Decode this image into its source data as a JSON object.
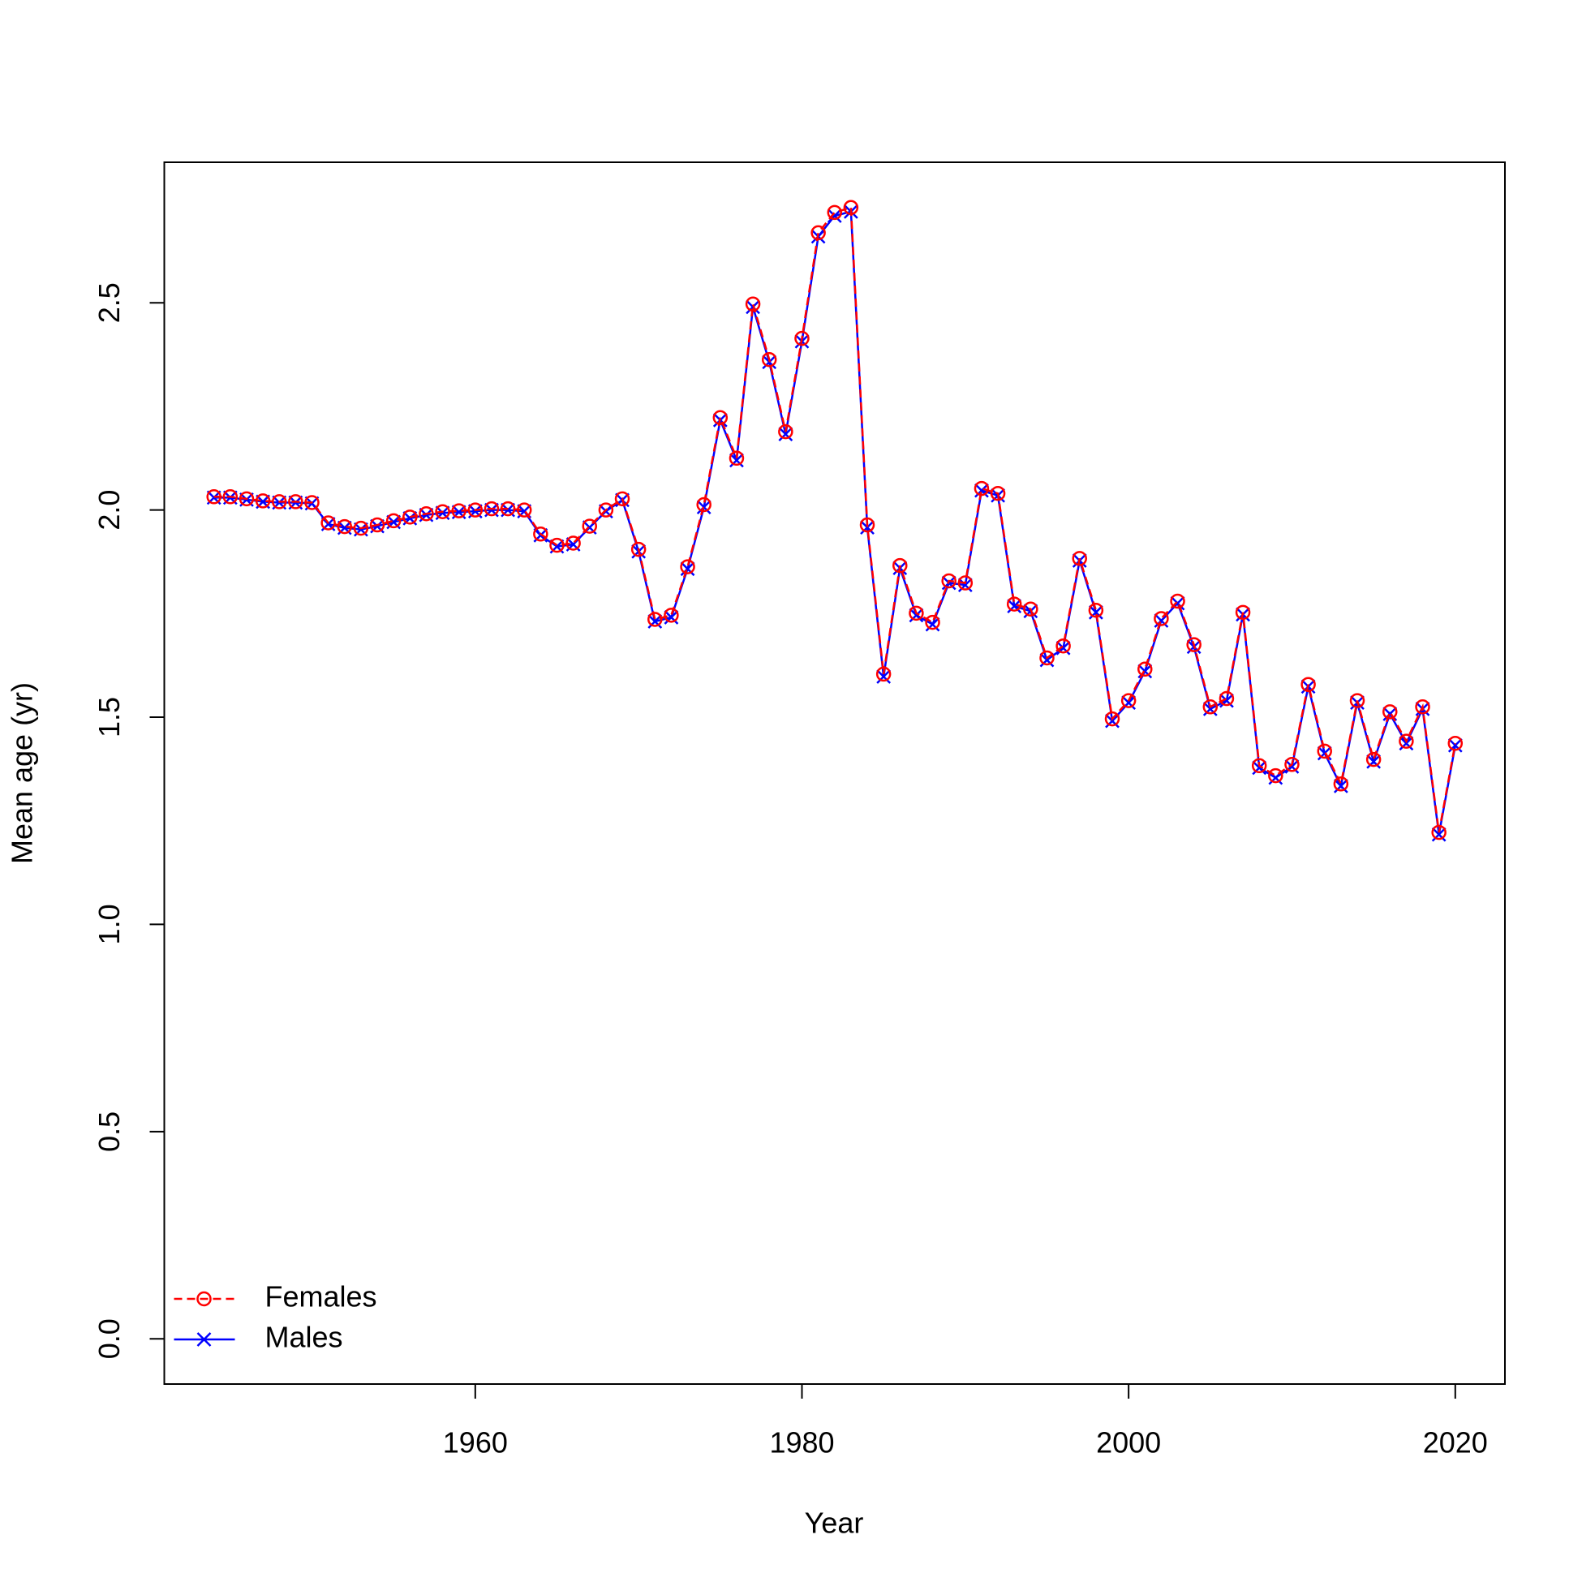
{
  "chart_data": {
    "type": "line",
    "xlabel": "Year",
    "ylabel": "Mean age (yr)",
    "x": [
      1944,
      1945,
      1946,
      1947,
      1948,
      1949,
      1950,
      1951,
      1952,
      1953,
      1954,
      1955,
      1956,
      1957,
      1958,
      1959,
      1960,
      1961,
      1962,
      1963,
      1964,
      1965,
      1966,
      1967,
      1968,
      1969,
      1970,
      1971,
      1972,
      1973,
      1974,
      1975,
      1976,
      1977,
      1978,
      1979,
      1980,
      1981,
      1982,
      1983,
      1984,
      1985,
      1986,
      1987,
      1988,
      1989,
      1990,
      1991,
      1992,
      1993,
      1994,
      1995,
      1996,
      1997,
      1998,
      1999,
      2000,
      2001,
      2002,
      2003,
      2004,
      2005,
      2006,
      2007,
      2008,
      2009,
      2010,
      2011,
      2012,
      2013,
      2014,
      2015,
      2016,
      2017,
      2018,
      2019,
      2020
    ],
    "series": [
      {
        "name": "Females",
        "color": "#ff0000",
        "dashed": true,
        "marker": "circle",
        "values": [
          2.032,
          2.032,
          2.027,
          2.022,
          2.02,
          2.02,
          2.018,
          1.969,
          1.96,
          1.956,
          1.964,
          1.974,
          1.983,
          1.991,
          1.996,
          1.998,
          2.0,
          2.003,
          2.003,
          2.0,
          1.942,
          1.915,
          1.92,
          1.961,
          2.0,
          2.027,
          1.905,
          1.736,
          1.746,
          1.863,
          2.013,
          2.223,
          2.125,
          2.497,
          2.363,
          2.189,
          2.414,
          2.669,
          2.718,
          2.73,
          1.964,
          1.604,
          1.866,
          1.751,
          1.729,
          1.829,
          1.824,
          2.052,
          2.04,
          1.773,
          1.761,
          1.643,
          1.672,
          1.883,
          1.758,
          1.496,
          1.54,
          1.616,
          1.738,
          1.78,
          1.675,
          1.525,
          1.545,
          1.753,
          1.383,
          1.359,
          1.386,
          1.579,
          1.418,
          1.339,
          1.54,
          1.398,
          1.513,
          1.442,
          1.525,
          1.222,
          1.437
        ]
      },
      {
        "name": "Males",
        "color": "#0000ff",
        "dashed": false,
        "marker": "cross",
        "values": [
          2.03,
          2.03,
          2.025,
          2.02,
          2.018,
          2.018,
          2.016,
          1.966,
          1.957,
          1.953,
          1.961,
          1.971,
          1.98,
          1.988,
          1.993,
          1.995,
          1.997,
          2.0,
          2.0,
          1.997,
          1.939,
          1.912,
          1.917,
          1.958,
          1.997,
          2.024,
          1.9,
          1.731,
          1.741,
          1.858,
          2.007,
          2.217,
          2.12,
          2.49,
          2.357,
          2.183,
          2.407,
          2.66,
          2.71,
          2.72,
          1.958,
          1.598,
          1.86,
          1.746,
          1.724,
          1.824,
          1.819,
          2.047,
          2.035,
          1.768,
          1.756,
          1.638,
          1.667,
          1.878,
          1.753,
          1.491,
          1.535,
          1.611,
          1.733,
          1.775,
          1.67,
          1.52,
          1.54,
          1.748,
          1.378,
          1.354,
          1.381,
          1.574,
          1.413,
          1.334,
          1.535,
          1.393,
          1.508,
          1.437,
          1.52,
          1.217,
          1.432
        ]
      }
    ],
    "xlim": [
      1940.96,
      2023.04
    ],
    "ylim": [
      -0.1092,
      2.8392
    ],
    "xticks": [
      1960,
      1980,
      2000,
      2020
    ],
    "yticks": [
      {
        "value": 0,
        "label": "0.0"
      },
      0.5,
      {
        "value": 1,
        "label": "1.0"
      },
      1.5,
      {
        "value": 2,
        "label": "2.0"
      },
      2.5
    ],
    "legend": "bottom-left"
  }
}
